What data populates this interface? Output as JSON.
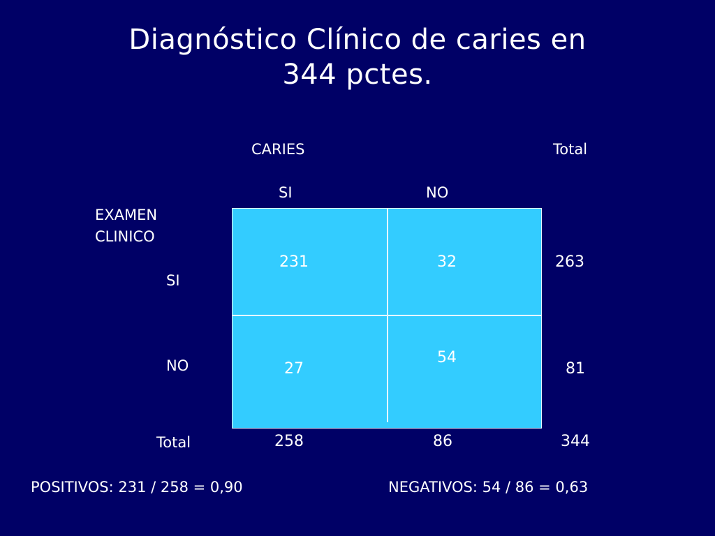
{
  "title": {
    "line1": "Diagnóstico Clínico de caries en",
    "line2": "344 pctes."
  },
  "table": {
    "caries_header": "CARIES",
    "total_header": "Total",
    "col_si": "SI",
    "col_no": "NO",
    "exam_header_line1": "EXAMEN",
    "exam_header_line2": "CLINICO",
    "row_si": "SI",
    "row_no": "NO",
    "row_total": "Total",
    "cells": {
      "si_si": "231",
      "si_no": "32",
      "no_si": "27",
      "no_no": "54"
    },
    "row_totals": {
      "si": "263",
      "no": "81"
    },
    "col_totals": {
      "si": "258",
      "no": "86",
      "grand": "344"
    }
  },
  "footer": {
    "positivos": "POSITIVOS: 231 / 258 = 0,90",
    "negativos": "NEGATIVOS: 54 / 86 = 0,63"
  },
  "colors": {
    "background": "#000066",
    "table_fill": "#33ccff",
    "text": "#ffffff"
  }
}
